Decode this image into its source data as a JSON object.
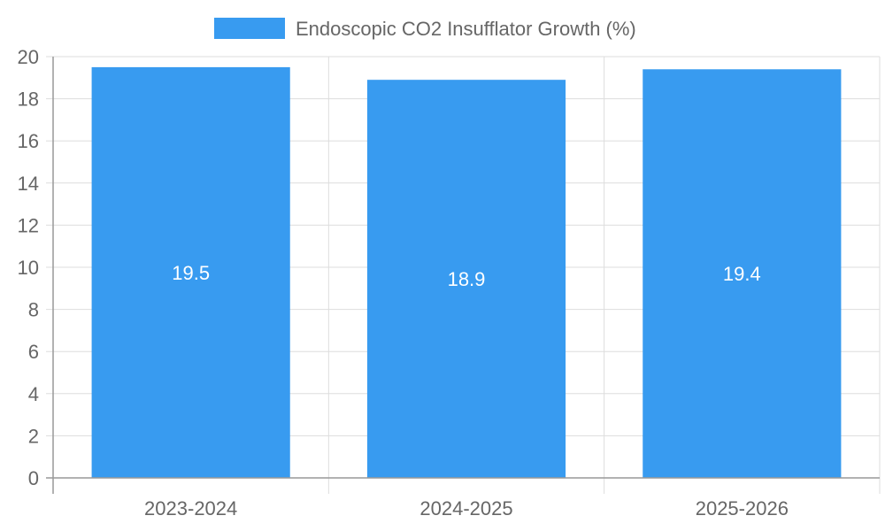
{
  "chart_data": {
    "type": "bar",
    "categories": [
      "2023-2024",
      "2024-2025",
      "2025-2026"
    ],
    "series": [
      {
        "name": "Endoscopic CO2 Insufflator Growth (%)",
        "values": [
          19.5,
          18.9,
          19.4
        ]
      }
    ],
    "ylim": [
      0,
      20
    ],
    "yticks": [
      0,
      2,
      4,
      6,
      8,
      10,
      12,
      14,
      16,
      18,
      20
    ],
    "grid": true,
    "legend": "top-center",
    "data_labels": [
      "19.5",
      "18.9",
      "19.4"
    ]
  },
  "colors": {
    "bar": "#389bf0",
    "grid": "#dddddd",
    "axis": "#999999",
    "text": "#666666",
    "label": "#ffffff"
  }
}
